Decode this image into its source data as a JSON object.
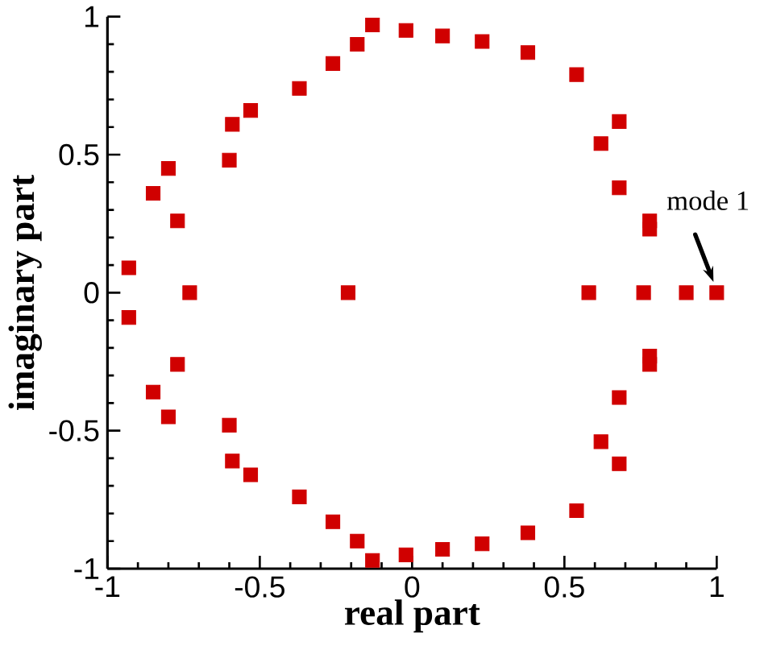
{
  "chart_data": {
    "type": "scatter",
    "xlabel": "real part",
    "ylabel": "imaginary part",
    "x": [
      -0.93,
      -0.85,
      -0.8,
      -0.77,
      -0.6,
      -0.59,
      -0.53,
      -0.37,
      -0.26,
      -0.18,
      -0.13,
      -0.02,
      0.1,
      0.23,
      0.38,
      0.54,
      0.68,
      0.62,
      0.68,
      0.78,
      0.78,
      -0.73,
      -0.21,
      0.58,
      0.76,
      0.9,
      1.0,
      -0.93,
      -0.85,
      -0.8,
      -0.77,
      -0.6,
      -0.59,
      -0.53,
      -0.37,
      -0.26,
      -0.18,
      -0.13,
      -0.02,
      0.1,
      0.23,
      0.38,
      0.54,
      0.68,
      0.62,
      0.68,
      0.78,
      0.78
    ],
    "values": [
      0.09,
      0.36,
      0.45,
      0.26,
      0.48,
      0.61,
      0.66,
      0.74,
      0.83,
      0.9,
      0.97,
      0.95,
      0.93,
      0.91,
      0.87,
      0.79,
      0.62,
      0.54,
      0.38,
      0.26,
      0.23,
      0,
      0,
      0,
      0,
      0,
      0,
      -0.09,
      -0.36,
      -0.45,
      -0.26,
      -0.48,
      -0.61,
      -0.66,
      -0.74,
      -0.83,
      -0.9,
      -0.97,
      -0.95,
      -0.93,
      -0.91,
      -0.87,
      -0.79,
      -0.62,
      -0.54,
      -0.38,
      -0.26,
      -0.23
    ],
    "color": "#d00000",
    "marker": "square",
    "xlim": [
      -1,
      1
    ],
    "ylim": [
      -1,
      1
    ],
    "xticks": [
      -1,
      -0.5,
      0,
      0.5,
      1
    ],
    "yticks": [
      -1,
      -0.5,
      0,
      0.5,
      1
    ],
    "annotations": [
      {
        "text": "mode 1",
        "x": 1,
        "y": 0
      }
    ]
  }
}
